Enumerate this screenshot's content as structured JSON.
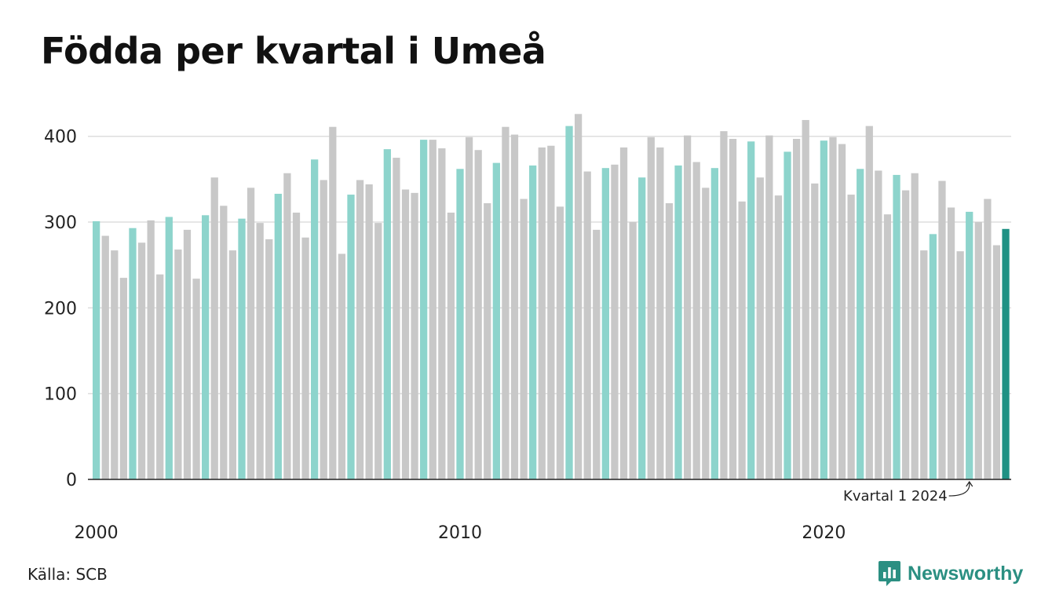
{
  "title": "Födda per kvartal i Umeå",
  "source": "Källa: SCB",
  "brand": {
    "name": "Newsworthy"
  },
  "colors": {
    "q1": "#8dd4cc",
    "other": "#c8c8c8",
    "latest": "#1f9184",
    "grid": "#dddddd",
    "axis": "#222222"
  },
  "chart_data": {
    "type": "bar",
    "title": "Födda per kvartal i Umeå",
    "xlabel": "",
    "ylabel": "",
    "ylim": [
      0,
      440
    ],
    "yticks": [
      0,
      100,
      200,
      300,
      400
    ],
    "grid": true,
    "x_tick_labels": [
      {
        "label": "2000",
        "index": 0
      },
      {
        "label": "2010",
        "index": 40
      },
      {
        "label": "2020",
        "index": 80
      }
    ],
    "annotation": {
      "text": "Kvartal 1 2024",
      "index": 96
    },
    "start_year": 2000,
    "values": [
      301,
      284,
      267,
      235,
      293,
      276,
      302,
      239,
      306,
      268,
      291,
      234,
      308,
      352,
      319,
      267,
      304,
      340,
      299,
      280,
      333,
      357,
      311,
      282,
      373,
      349,
      411,
      263,
      332,
      349,
      344,
      299,
      385,
      375,
      338,
      334,
      396,
      396,
      386,
      311,
      362,
      399,
      384,
      322,
      369,
      411,
      402,
      327,
      366,
      387,
      389,
      318,
      412,
      426,
      359,
      291,
      363,
      367,
      387,
      300,
      352,
      399,
      387,
      322,
      366,
      401,
      370,
      340,
      363,
      406,
      397,
      324,
      394,
      352,
      401,
      331,
      382,
      397,
      419,
      345,
      395,
      399,
      391,
      332,
      362,
      412,
      360,
      309,
      355,
      337,
      357,
      267,
      286,
      348,
      317,
      266,
      312,
      300,
      327,
      273,
      292
    ]
  }
}
